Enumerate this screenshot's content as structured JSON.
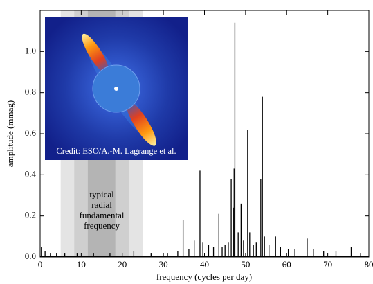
{
  "chart_data": {
    "type": "spectrum",
    "x_label": "frequency (cycles per day)",
    "y_label": "amplitude (mmag)",
    "xlim": [
      0,
      80
    ],
    "ylim": [
      0,
      1.2
    ],
    "xticks": [
      0,
      10,
      20,
      30,
      40,
      50,
      60,
      70,
      80
    ],
    "yticks": [
      {
        "value": 0,
        "label": "0.0"
      },
      0.2,
      0.4,
      0.6,
      0.8,
      {
        "value": 1,
        "label": "1.0"
      }
    ],
    "color": "#000000",
    "bands": [
      {
        "range": [
          5,
          25
        ],
        "color": "#e4e4e4"
      },
      {
        "range": [
          8.3,
          21.6
        ],
        "color": "#cfcfcf"
      },
      {
        "range": [
          11.6,
          18.3
        ],
        "color": "#b4b4b4"
      }
    ],
    "annotation": [
      "typical",
      "radial",
      "fundamental",
      "frequency"
    ],
    "inset_credit": "Credit: ESO/A.-M. Lagrange et al.",
    "x": [
      0.3,
      1.2,
      2.5,
      4.0,
      6.0,
      9.0,
      13.0,
      17.0,
      22.8,
      27.0,
      31.0,
      33.5,
      34.8,
      36.2,
      37.5,
      38.9,
      39.6,
      41.0,
      42.2,
      43.5,
      44.3,
      45.0,
      45.8,
      46.5,
      47.0,
      47.2,
      47.4,
      48.2,
      48.9,
      49.5,
      50.5,
      51.0,
      51.9,
      52.6,
      53.7,
      54.1,
      54.6,
      55.7,
      57.3,
      58.5,
      60.4,
      62.0,
      65.0,
      66.5,
      69.0,
      72.0,
      75.7,
      78.0
    ],
    "values": [
      0.05,
      0.03,
      0.02,
      0.02,
      0.02,
      0.02,
      0.02,
      0.02,
      0.03,
      0.02,
      0.02,
      0.03,
      0.18,
      0.04,
      0.08,
      0.42,
      0.07,
      0.06,
      0.05,
      0.21,
      0.05,
      0.06,
      0.07,
      0.38,
      0.24,
      0.43,
      1.14,
      0.12,
      0.26,
      0.08,
      0.62,
      0.12,
      0.06,
      0.07,
      0.38,
      0.78,
      0.1,
      0.06,
      0.1,
      0.05,
      0.04,
      0.04,
      0.09,
      0.04,
      0.03,
      0.03,
      0.05,
      0.02
    ]
  }
}
